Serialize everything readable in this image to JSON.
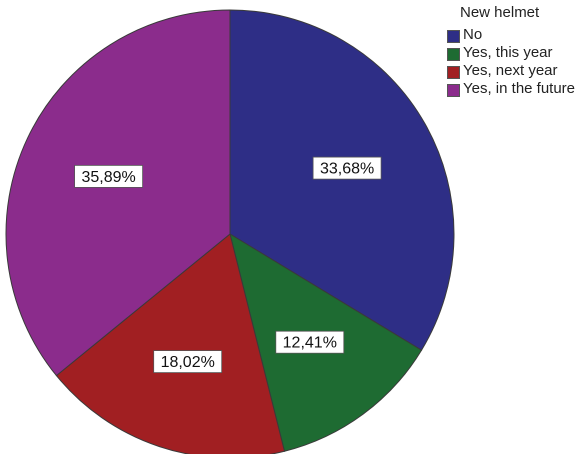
{
  "chart_data": {
    "type": "pie",
    "legend_title": "New helmet",
    "legend_position": "top-right",
    "slices": [
      {
        "label": "No",
        "value": 33.68,
        "value_label": "33,68%",
        "color": "#2e2e86"
      },
      {
        "label": "Yes, this year",
        "value": 12.41,
        "value_label": "12,41%",
        "color": "#1e6b32"
      },
      {
        "label": "Yes, next year",
        "value": 18.02,
        "value_label": "18,02%",
        "color": "#a11f22"
      },
      {
        "label": "Yes, in the future",
        "value": 35.89,
        "value_label": "35,89%",
        "color": "#8b2c8c"
      }
    ]
  }
}
